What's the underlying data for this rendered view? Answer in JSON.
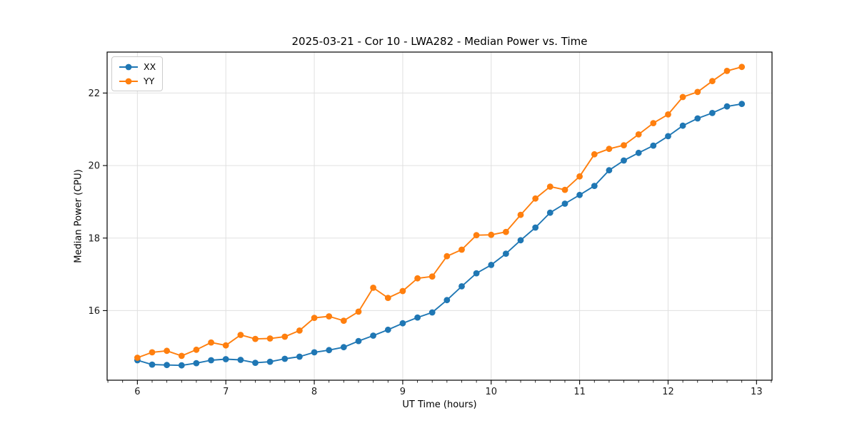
{
  "figure": {
    "background": "#ffffff"
  },
  "chart_data": {
    "type": "line",
    "title": "2025-03-21 - Cor 10 - LWA282 - Median Power vs. Time",
    "xlabel": "UT Time (hours)",
    "ylabel": "Median Power (CPU)",
    "xlim": [
      5.658,
      13.175
    ],
    "ylim": [
      14.08,
      23.13
    ],
    "x_major_ticks": [
      6,
      7,
      8,
      9,
      10,
      11,
      12,
      13
    ],
    "x_minor_step": 0.166667,
    "y_major_ticks": [
      16,
      18,
      20,
      22
    ],
    "grid": "major-only",
    "legend_position": "upper-left",
    "marker": "circle",
    "x": [
      6.0,
      6.1667,
      6.3333,
      6.5,
      6.6667,
      6.8333,
      7.0,
      7.1667,
      7.3333,
      7.5,
      7.6667,
      7.8333,
      8.0,
      8.1667,
      8.3333,
      8.5,
      8.6667,
      8.8333,
      9.0,
      9.1667,
      9.3333,
      9.5,
      9.6667,
      9.8333,
      10.0,
      10.1667,
      10.3333,
      10.5,
      10.6667,
      10.8333,
      11.0,
      11.1667,
      11.3333,
      11.5,
      11.6667,
      11.8333,
      12.0,
      12.1667,
      12.3333,
      12.5,
      12.6667,
      12.8333
    ],
    "series": [
      {
        "name": "XX",
        "color": "#1f77b4",
        "values": [
          14.63,
          14.51,
          14.5,
          14.49,
          14.55,
          14.63,
          14.66,
          14.64,
          14.56,
          14.59,
          14.67,
          14.73,
          14.85,
          14.91,
          14.99,
          15.16,
          15.31,
          15.47,
          15.65,
          15.81,
          15.95,
          16.29,
          16.67,
          17.03,
          17.26,
          17.57,
          17.94,
          18.29,
          18.7,
          18.95,
          19.19,
          19.44,
          19.87,
          20.14,
          20.35,
          20.55,
          20.81,
          21.1,
          21.3,
          21.45,
          21.63,
          21.7
        ]
      },
      {
        "name": "YY",
        "color": "#ff7f0e",
        "values": [
          14.7,
          14.85,
          14.89,
          14.75,
          14.92,
          15.12,
          15.04,
          15.33,
          15.22,
          15.23,
          15.28,
          15.45,
          15.8,
          15.84,
          15.72,
          15.97,
          16.63,
          16.35,
          16.54,
          16.89,
          16.94,
          17.5,
          17.68,
          18.08,
          18.09,
          18.17,
          18.64,
          19.09,
          19.42,
          19.33,
          19.7,
          20.31,
          20.46,
          20.56,
          20.86,
          21.17,
          21.41,
          21.89,
          22.03,
          22.33,
          22.61,
          22.72
        ]
      }
    ]
  },
  "style": {
    "grid_color": "#e0e0e0",
    "spine_color": "#000000",
    "tick_color": "#000000",
    "text_color": "#1a1a1a"
  }
}
